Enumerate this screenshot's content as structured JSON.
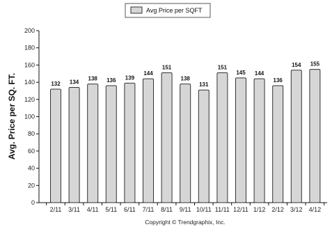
{
  "chart_data": {
    "type": "bar",
    "categories": [
      "2/11",
      "3/11",
      "4/11",
      "5/11",
      "6/11",
      "7/11",
      "8/11",
      "9/11",
      "10/11",
      "11/11",
      "12/11",
      "1/12",
      "2/12",
      "3/12",
      "4/12"
    ],
    "series": [
      {
        "name": "Avg Price per SQFT",
        "values": [
          132,
          134,
          138,
          136,
          139,
          144,
          151,
          138,
          131,
          151,
          145,
          144,
          136,
          154,
          155
        ]
      }
    ],
    "data_labels": [
      "132",
      "134",
      "138",
      "136",
      "139",
      "144",
      "151",
      "138",
      "131",
      "151",
      "145",
      "144",
      "136",
      "154",
      "155"
    ],
    "ylabel": "Avg. Price per SQ. FT.",
    "xlabel": "",
    "ylim": [
      0,
      200
    ],
    "yticks": [
      0,
      20,
      40,
      60,
      80,
      100,
      120,
      140,
      160,
      180,
      200
    ],
    "grid": false,
    "legend_position": "top-center",
    "bar_color": "#d6d6d6",
    "bar_stroke": "#333333"
  },
  "footer": {
    "copyright": "Copyright © Trendgraphix, Inc."
  }
}
